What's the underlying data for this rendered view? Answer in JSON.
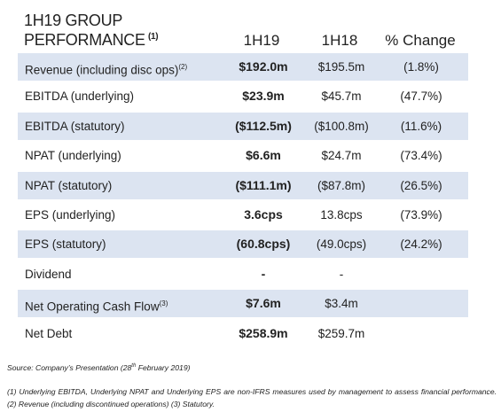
{
  "header": {
    "title": "1H19 GROUP PERFORMANCE",
    "title_note": "(1)",
    "columns": [
      "1H19",
      "1H18",
      "% Change"
    ]
  },
  "table": {
    "rows": [
      {
        "label": "Revenue (including disc ops)",
        "note": "(2)",
        "h19": "$192.0m",
        "h18": "$195.5m",
        "change": "(1.8%)"
      },
      {
        "label": "EBITDA (underlying)",
        "h19": "$23.9m",
        "h18": "$45.7m",
        "change": "(47.7%)"
      },
      {
        "label": "EBITDA (statutory)",
        "h19": "($112.5m)",
        "h18": "($100.8m)",
        "change": "(11.6%)"
      },
      {
        "label": "NPAT (underlying)",
        "h19": "$6.6m",
        "h18": "$24.7m",
        "change": "(73.4%)"
      },
      {
        "label": "NPAT (statutory)",
        "h19": "($111.1m)",
        "h18": "($87.8m)",
        "change": "(26.5%)"
      },
      {
        "label": "EPS (underlying)",
        "h19": "3.6cps",
        "h18": "13.8cps",
        "change": "(73.9%)"
      },
      {
        "label": "EPS (statutory)",
        "h19": "(60.8cps)",
        "h18": "(49.0cps)",
        "change": "(24.2%)"
      },
      {
        "label": "Dividend",
        "h19": "-",
        "h18": "-"
      },
      {
        "label": "Net Operating Cash Flow",
        "note": "(3)",
        "h19": "$7.6m",
        "h18": "$3.4m"
      },
      {
        "label": "Net Debt",
        "h19": "$258.9m",
        "h18": "$259.7m"
      }
    ]
  },
  "source": {
    "before": "Source: Company’s Presentation (28",
    "sup": "th",
    "after": " February 2019)"
  },
  "footnote": "(1) Underlying EBITDA, Underlying NPAT and Underlying EPS are non-IFRS measures used by management to assess financial performance. (2) Revenue (including discontinued operations) (3) Statutory."
}
